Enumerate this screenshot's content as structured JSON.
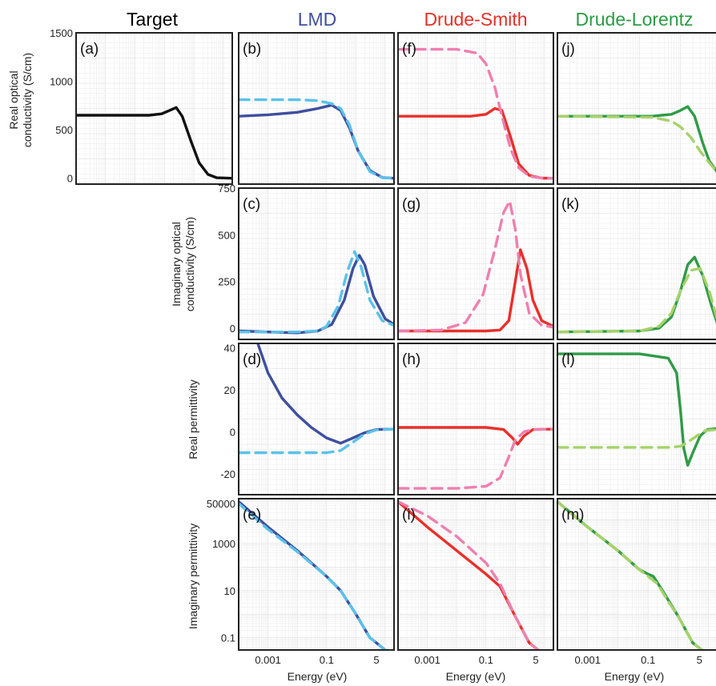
{
  "column_titles": {
    "target": "Target",
    "lmd": "LMD",
    "drude_smith": "Drude-Smith",
    "drude_lorentz": "Drude-Lorentz"
  },
  "colors": {
    "target": "#111111",
    "lmd_solid": "#3e4f9e",
    "lmd_dash": "#5bc1ea",
    "ds_solid": "#e8302a",
    "ds_dash": "#ef7fb0",
    "dl_solid": "#2f9b47",
    "dl_dash": "#a6d26a",
    "lmd_title": "#3f4fa0",
    "ds_title": "#e53026",
    "dl_title": "#2e9a46"
  },
  "axis_labels": {
    "row1": [
      "Real optical",
      "conductivity (S/cm)"
    ],
    "row2": [
      "Imaginary optical",
      "conductivity (S/cm)"
    ],
    "row3": "Real permittivity",
    "row4": "Imaginary permittivity",
    "x": "Energy (eV)"
  },
  "x_ticks": [
    "0.001",
    "0.1",
    "5"
  ],
  "chart_data": [
    {
      "panel": "(a)",
      "type": "line",
      "xscale": "log",
      "xlim": [
        0.0001,
        20
      ],
      "ylim": [
        -60,
        1500
      ],
      "yticks": [
        "1500",
        "1000",
        "500",
        "0"
      ],
      "series": [
        {
          "style": "solid",
          "x": [
            0.0001,
            0.03,
            0.08,
            0.15,
            0.25,
            0.4,
            0.8,
            1.5,
            3,
            6,
            20
          ],
          "y": [
            650,
            650,
            665,
            700,
            730,
            640,
            380,
            160,
            40,
            5,
            0
          ]
        }
      ]
    },
    {
      "panel": "(b)",
      "type": "line",
      "xscale": "log",
      "xlim": [
        0.0001,
        20
      ],
      "ylim": [
        -60,
        1500
      ],
      "series": [
        {
          "style": "solid",
          "x": [
            0.0001,
            0.001,
            0.01,
            0.05,
            0.15,
            0.3,
            0.6,
            1.2,
            3,
            8,
            20
          ],
          "y": [
            640,
            655,
            680,
            720,
            755,
            700,
            520,
            280,
            80,
            8,
            0
          ]
        },
        {
          "style": "dashed",
          "x": [
            0.0001,
            0.01,
            0.05,
            0.15,
            0.3,
            0.6,
            1.2,
            3,
            8,
            20
          ],
          "y": [
            810,
            810,
            800,
            770,
            720,
            550,
            280,
            70,
            5,
            0
          ]
        }
      ]
    },
    {
      "panel": "(f)",
      "type": "line",
      "xscale": "log",
      "xlim": [
        0.0001,
        20
      ],
      "ylim": [
        -60,
        1500
      ],
      "series": [
        {
          "style": "solid",
          "x": [
            0.0001,
            0.03,
            0.1,
            0.2,
            0.35,
            0.7,
            1.3,
            3,
            8,
            20
          ],
          "y": [
            640,
            640,
            660,
            720,
            700,
            420,
            150,
            30,
            2,
            0
          ]
        },
        {
          "style": "dashed",
          "x": [
            0.0001,
            0.01,
            0.05,
            0.1,
            0.2,
            0.35,
            0.7,
            1.3,
            3,
            8,
            20
          ],
          "y": [
            1330,
            1330,
            1290,
            1180,
            940,
            640,
            300,
            110,
            20,
            2,
            0
          ]
        }
      ]
    },
    {
      "panel": "(j)",
      "type": "line",
      "xscale": "log",
      "xlim": [
        0.0001,
        0.8
      ],
      "ylim": [
        -60,
        1500
      ],
      "series": [
        {
          "style": "solid",
          "x": [
            0.0001,
            0.02,
            0.06,
            0.1,
            0.15,
            0.22,
            0.35,
            0.5,
            0.8
          ],
          "y": [
            640,
            640,
            660,
            700,
            740,
            640,
            360,
            180,
            60
          ]
        },
        {
          "style": "dashed",
          "x": [
            0.0001,
            0.02,
            0.06,
            0.1,
            0.18,
            0.3,
            0.5,
            0.8
          ],
          "y": [
            640,
            630,
            590,
            530,
            420,
            280,
            160,
            60
          ]
        }
      ]
    },
    {
      "panel": "(c)",
      "type": "line",
      "xscale": "log",
      "xlim": [
        0.0001,
        20
      ],
      "ylim": [
        -60,
        750
      ],
      "yticks": [
        "750",
        "500",
        "250",
        "0"
      ],
      "series": [
        {
          "style": "solid",
          "x": [
            0.0001,
            0.001,
            0.01,
            0.05,
            0.15,
            0.4,
            0.8,
            1.3,
            2,
            4,
            10,
            20
          ],
          "y": [
            -15,
            -20,
            -25,
            -15,
            20,
            150,
            320,
            390,
            340,
            170,
            50,
            20
          ]
        },
        {
          "style": "dashed",
          "x": [
            0.0001,
            0.01,
            0.05,
            0.1,
            0.25,
            0.5,
            0.9,
            1.5,
            3,
            8,
            20
          ],
          "y": [
            -20,
            -20,
            -15,
            10,
            120,
            300,
            410,
            330,
            150,
            40,
            15
          ]
        }
      ]
    },
    {
      "panel": "(g)",
      "type": "line",
      "xscale": "log",
      "xlim": [
        0.0001,
        20
      ],
      "ylim": [
        -60,
        750
      ],
      "series": [
        {
          "style": "solid",
          "x": [
            0.0001,
            0.01,
            0.1,
            0.3,
            0.6,
            1,
            1.5,
            2.5,
            4,
            8,
            20
          ],
          "y": [
            -15,
            -15,
            -15,
            -10,
            40,
            250,
            420,
            320,
            150,
            40,
            10
          ]
        },
        {
          "style": "dashed",
          "x": [
            0.0001,
            0.003,
            0.02,
            0.08,
            0.2,
            0.4,
            0.65,
            1,
            1.5,
            3,
            8,
            20
          ],
          "y": [
            -15,
            -10,
            30,
            180,
            420,
            620,
            680,
            530,
            290,
            80,
            15,
            5
          ]
        }
      ]
    },
    {
      "panel": "(k)",
      "type": "line",
      "xscale": "log",
      "xlim": [
        0.0001,
        0.8
      ],
      "ylim": [
        -60,
        750
      ],
      "series": [
        {
          "style": "solid",
          "x": [
            0.0001,
            0.01,
            0.03,
            0.06,
            0.1,
            0.15,
            0.22,
            0.35,
            0.55,
            0.8
          ],
          "y": [
            -20,
            -15,
            0,
            60,
            200,
            340,
            380,
            280,
            130,
            20
          ]
        },
        {
          "style": "dashed",
          "x": [
            0.0001,
            0.01,
            0.03,
            0.06,
            0.1,
            0.18,
            0.3,
            0.5,
            0.8
          ],
          "y": [
            -20,
            -15,
            10,
            80,
            200,
            310,
            320,
            200,
            40
          ]
        }
      ]
    },
    {
      "panel": "(d)",
      "type": "line",
      "xscale": "log",
      "xlim": [
        0.0001,
        20
      ],
      "ylim": [
        -30,
        42
      ],
      "yticks": [
        "40",
        "20",
        "0",
        "-20"
      ],
      "series": [
        {
          "style": "solid",
          "x": [
            0.00045,
            0.001,
            0.003,
            0.01,
            0.03,
            0.1,
            0.3,
            0.8,
            2,
            5,
            20
          ],
          "y": [
            42,
            28,
            16,
            8,
            2,
            -3,
            -5.5,
            -3,
            -0.5,
            1,
            1.2
          ]
        },
        {
          "style": "dashed",
          "x": [
            0.0001,
            0.01,
            0.1,
            0.3,
            0.8,
            2,
            5,
            20
          ],
          "y": [
            -10,
            -10,
            -10,
            -9,
            -5,
            -1,
            0.8,
            1.2
          ]
        }
      ]
    },
    {
      "panel": "(h)",
      "type": "line",
      "xscale": "log",
      "xlim": [
        0.0001,
        20
      ],
      "ylim": [
        -30,
        42
      ],
      "series": [
        {
          "style": "solid",
          "x": [
            0.0001,
            0.01,
            0.1,
            0.4,
            0.8,
            1.2,
            2,
            4,
            20
          ],
          "y": [
            2,
            2,
            2,
            1,
            -3,
            -6,
            -2,
            1,
            1.2
          ]
        },
        {
          "style": "dashed",
          "x": [
            0.0001,
            0.01,
            0.1,
            0.3,
            0.6,
            1,
            2,
            4,
            20
          ],
          "y": [
            -27,
            -27,
            -26,
            -22,
            -12,
            -4,
            0,
            1,
            1.2
          ]
        }
      ]
    },
    {
      "panel": "(l)",
      "type": "line",
      "xscale": "log",
      "xlim": [
        0.0001,
        0.8
      ],
      "ylim": [
        -30,
        42
      ],
      "series": [
        {
          "style": "solid",
          "x": [
            0.0001,
            0.01,
            0.05,
            0.08,
            0.1,
            0.12,
            0.15,
            0.2,
            0.3,
            0.45,
            0.8
          ],
          "y": [
            37,
            37,
            35,
            28,
            10,
            -8,
            -16,
            -10,
            -2,
            1,
            1.5
          ]
        },
        {
          "style": "dashed",
          "x": [
            0.0001,
            0.01,
            0.05,
            0.1,
            0.15,
            0.25,
            0.4,
            0.8
          ],
          "y": [
            -7.5,
            -7.5,
            -7.5,
            -7,
            -5,
            -2,
            0.5,
            1
          ]
        }
      ]
    },
    {
      "panel": "(e)",
      "type": "line",
      "xscale": "log",
      "yscale": "log",
      "xlim": [
        0.0001,
        20
      ],
      "ylim": [
        0.03,
        80000
      ],
      "yticks": [
        "50000",
        "1000",
        "10",
        "0.1"
      ],
      "series": [
        {
          "style": "solid",
          "x": [
            0.0001,
            0.001,
            0.01,
            0.1,
            0.3,
            1,
            3,
            10
          ],
          "y": [
            60000,
            5000,
            500,
            40,
            10,
            1,
            0.1,
            0.03
          ]
        },
        {
          "style": "dashed",
          "x": [
            0.0001,
            0.001,
            0.01,
            0.1,
            0.3,
            1,
            3,
            10
          ],
          "y": [
            50000,
            4000,
            450,
            40,
            10,
            1,
            0.1,
            0.03
          ]
        }
      ]
    },
    {
      "panel": "(i)",
      "type": "line",
      "xscale": "log",
      "yscale": "log",
      "xlim": [
        0.0001,
        20
      ],
      "ylim": [
        0.03,
        80000
      ],
      "series": [
        {
          "style": "solid",
          "x": [
            0.0001,
            0.001,
            0.01,
            0.1,
            0.3,
            1,
            3,
            6
          ],
          "y": [
            60000,
            5000,
            500,
            50,
            15,
            0.8,
            0.06,
            0.03
          ]
        },
        {
          "style": "dashed",
          "x": [
            0.0001,
            0.001,
            0.01,
            0.1,
            0.3,
            1,
            3,
            6
          ],
          "y": [
            60000,
            15000,
            2000,
            150,
            20,
            0.8,
            0.06,
            0.03
          ]
        }
      ]
    },
    {
      "panel": "(m)",
      "type": "line",
      "xscale": "log",
      "yscale": "log",
      "xlim": [
        0.0001,
        20
      ],
      "ylim": [
        0.03,
        80000
      ],
      "series": [
        {
          "style": "solid",
          "x": [
            0.0001,
            0.001,
            0.01,
            0.05,
            0.1,
            0.15,
            0.3,
            1,
            3,
            6
          ],
          "y": [
            60000,
            5000,
            500,
            80,
            50,
            40,
            10,
            0.8,
            0.06,
            0.03
          ]
        },
        {
          "style": "dashed",
          "x": [
            0.0001,
            0.001,
            0.01,
            0.05,
            0.1,
            0.2,
            0.5,
            1,
            3,
            6
          ],
          "y": [
            60000,
            5000,
            500,
            80,
            40,
            20,
            3,
            0.8,
            0.06,
            0.03
          ]
        }
      ]
    }
  ]
}
